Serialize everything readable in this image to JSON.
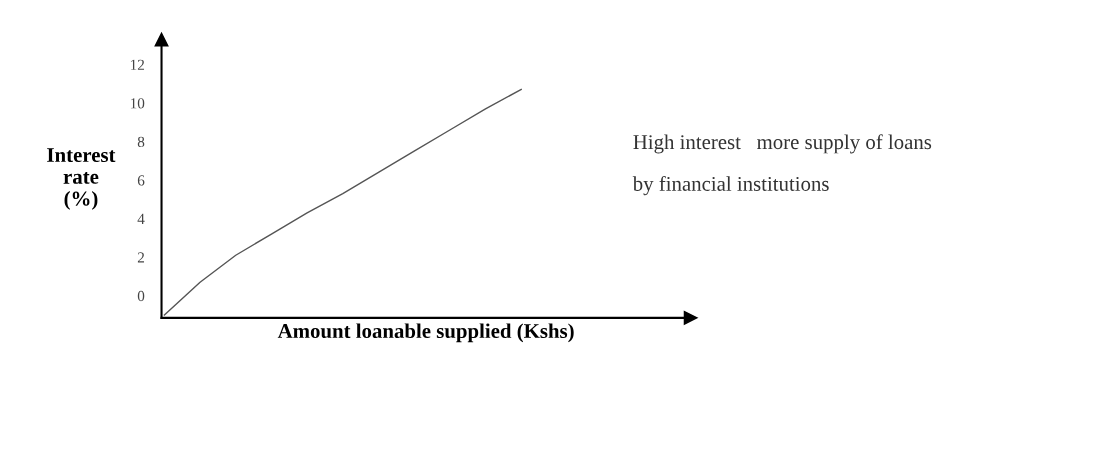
{
  "chart_data": {
    "type": "line",
    "xlabel": "Amount loanable supplied (Kshs)",
    "ylabel": "Interest\nrate\n(%)",
    "categories": [
      null,
      null,
      null,
      null,
      null,
      null,
      null,
      null,
      null,
      null,
      null,
      null,
      null,
      null,
      null
    ],
    "series": [
      {
        "color": "#555555",
        "values": [
          -1.0,
          0.7,
          2.1,
          3.2,
          4.3,
          5.3,
          6.4,
          7.5,
          8.6,
          9.7,
          10.7,
          null,
          null,
          null,
          null
        ]
      }
    ],
    "ylim": [
      -1.15,
      13.3
    ],
    "yticks": [
      0,
      2,
      4,
      6,
      8,
      10,
      12
    ],
    "tick_labels": "y",
    "grid": false,
    "legend": false,
    "marker": "none",
    "line_style": "solid",
    "annotations": [
      "High interest   more supply of loans",
      "by financial institutions"
    ]
  }
}
